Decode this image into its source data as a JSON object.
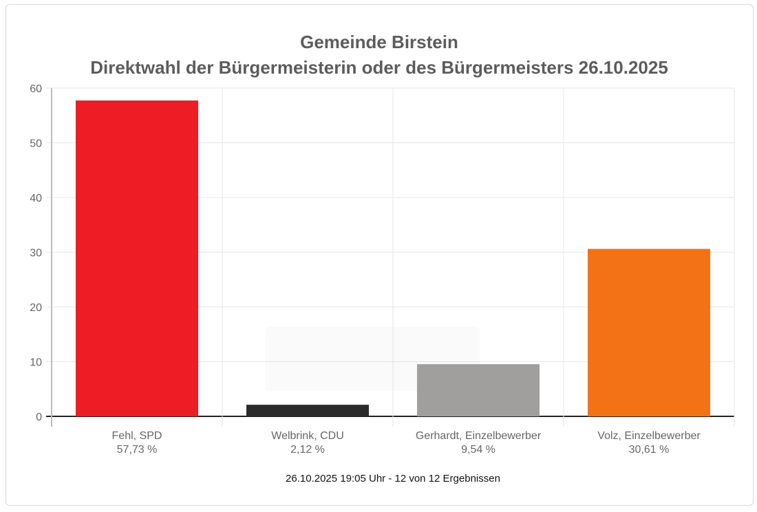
{
  "chart_data": {
    "type": "bar",
    "title": [
      "Gemeinde Birstein",
      "Direktwahl der Bürgermeisterin oder des Bürgermeisters 26.10.2025"
    ],
    "categories": [
      "Fehl, SPD",
      "Welbrink, CDU",
      "Gerhardt, Einzelbewerber",
      "Volz, Einzelbewerber"
    ],
    "value_labels": [
      "57,73 %",
      "2,12 %",
      "9,54 %",
      "30,61 %"
    ],
    "values": [
      57.73,
      2.12,
      9.54,
      30.61
    ],
    "colors": [
      "#ee1c25",
      "#2b2b2b",
      "#a09f9d",
      "#f47216"
    ],
    "ylim": [
      0,
      60
    ],
    "yticks": [
      0,
      10,
      20,
      30,
      40,
      50,
      60
    ],
    "grid": true,
    "legend": "none",
    "xlabel": "",
    "ylabel": ""
  },
  "footer": "26.10.2025 19:05 Uhr - 12 von 12 Ergebnissen"
}
